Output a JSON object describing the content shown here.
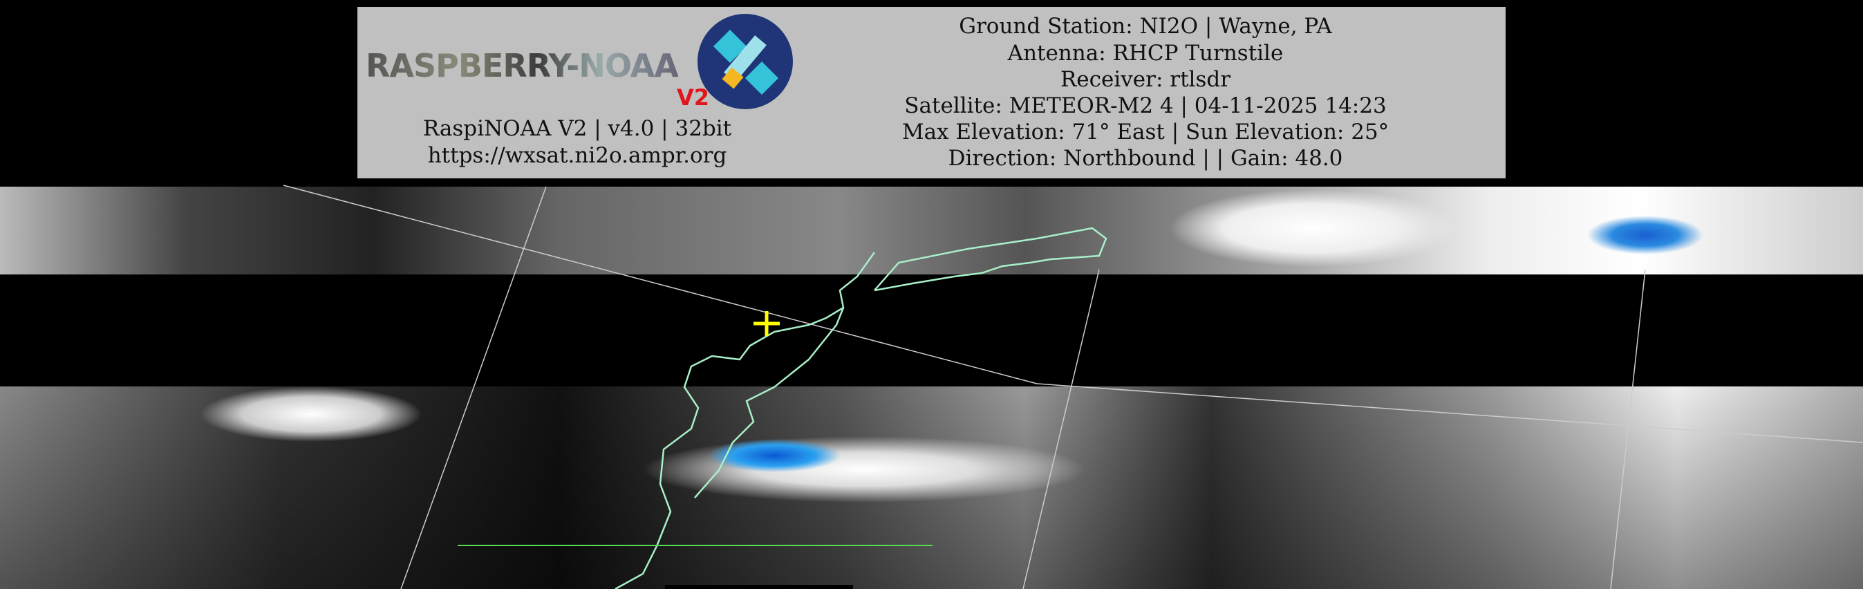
{
  "header": {
    "logo": {
      "text": "RASPBERRY-NOAA",
      "badge": "V2"
    },
    "left_lines": [
      "RaspiNOAA V2 | v4.0 | 32bit",
      "https://wxsat.ni2o.ampr.org"
    ],
    "right_lines": [
      "Ground Station: NI2O | Wayne, PA",
      "Antenna: RHCP Turnstile",
      "Receiver: rtlsdr",
      "Satellite: METEOR-M2 4 | 04-11-2025 14:23",
      "Max Elevation: 71° East | Sun Elevation: 25°",
      "Direction: Northbound | | Gain: 48.0"
    ]
  },
  "image": {
    "coastline_color": "#a8f0c8",
    "ground_station_marker_color": "#ffff00",
    "grid_line_color": "#cccccc"
  }
}
